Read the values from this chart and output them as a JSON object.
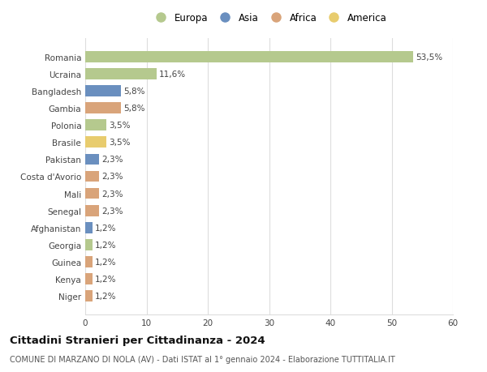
{
  "countries": [
    "Romania",
    "Ucraina",
    "Bangladesh",
    "Gambia",
    "Polonia",
    "Brasile",
    "Pakistan",
    "Costa d'Avorio",
    "Mali",
    "Senegal",
    "Afghanistan",
    "Georgia",
    "Guinea",
    "Kenya",
    "Niger"
  ],
  "values": [
    53.5,
    11.6,
    5.8,
    5.8,
    3.5,
    3.5,
    2.3,
    2.3,
    2.3,
    2.3,
    1.2,
    1.2,
    1.2,
    1.2,
    1.2
  ],
  "labels": [
    "53,5%",
    "11,6%",
    "5,8%",
    "5,8%",
    "3,5%",
    "3,5%",
    "2,3%",
    "2,3%",
    "2,3%",
    "2,3%",
    "1,2%",
    "1,2%",
    "1,2%",
    "1,2%",
    "1,2%"
  ],
  "continents": [
    "Europa",
    "Europa",
    "Asia",
    "Africa",
    "Europa",
    "America",
    "Asia",
    "Africa",
    "Africa",
    "Africa",
    "Asia",
    "Europa",
    "Africa",
    "Africa",
    "Africa"
  ],
  "continent_colors": {
    "Europa": "#b5c98e",
    "Asia": "#6a8fbf",
    "Africa": "#d9a47a",
    "America": "#e8cc6e"
  },
  "legend_order": [
    "Europa",
    "Asia",
    "Africa",
    "America"
  ],
  "title": "Cittadini Stranieri per Cittadinanza - 2024",
  "subtitle": "COMUNE DI MARZANO DI NOLA (AV) - Dati ISTAT al 1° gennaio 2024 - Elaborazione TUTTITALIA.IT",
  "xlim": [
    0,
    60
  ],
  "xticks": [
    0,
    10,
    20,
    30,
    40,
    50,
    60
  ],
  "background_color": "#ffffff",
  "grid_color": "#dddddd",
  "bar_height": 0.65,
  "label_fontsize": 7.5,
  "tick_fontsize": 7.5,
  "title_fontsize": 9.5,
  "subtitle_fontsize": 7.0
}
